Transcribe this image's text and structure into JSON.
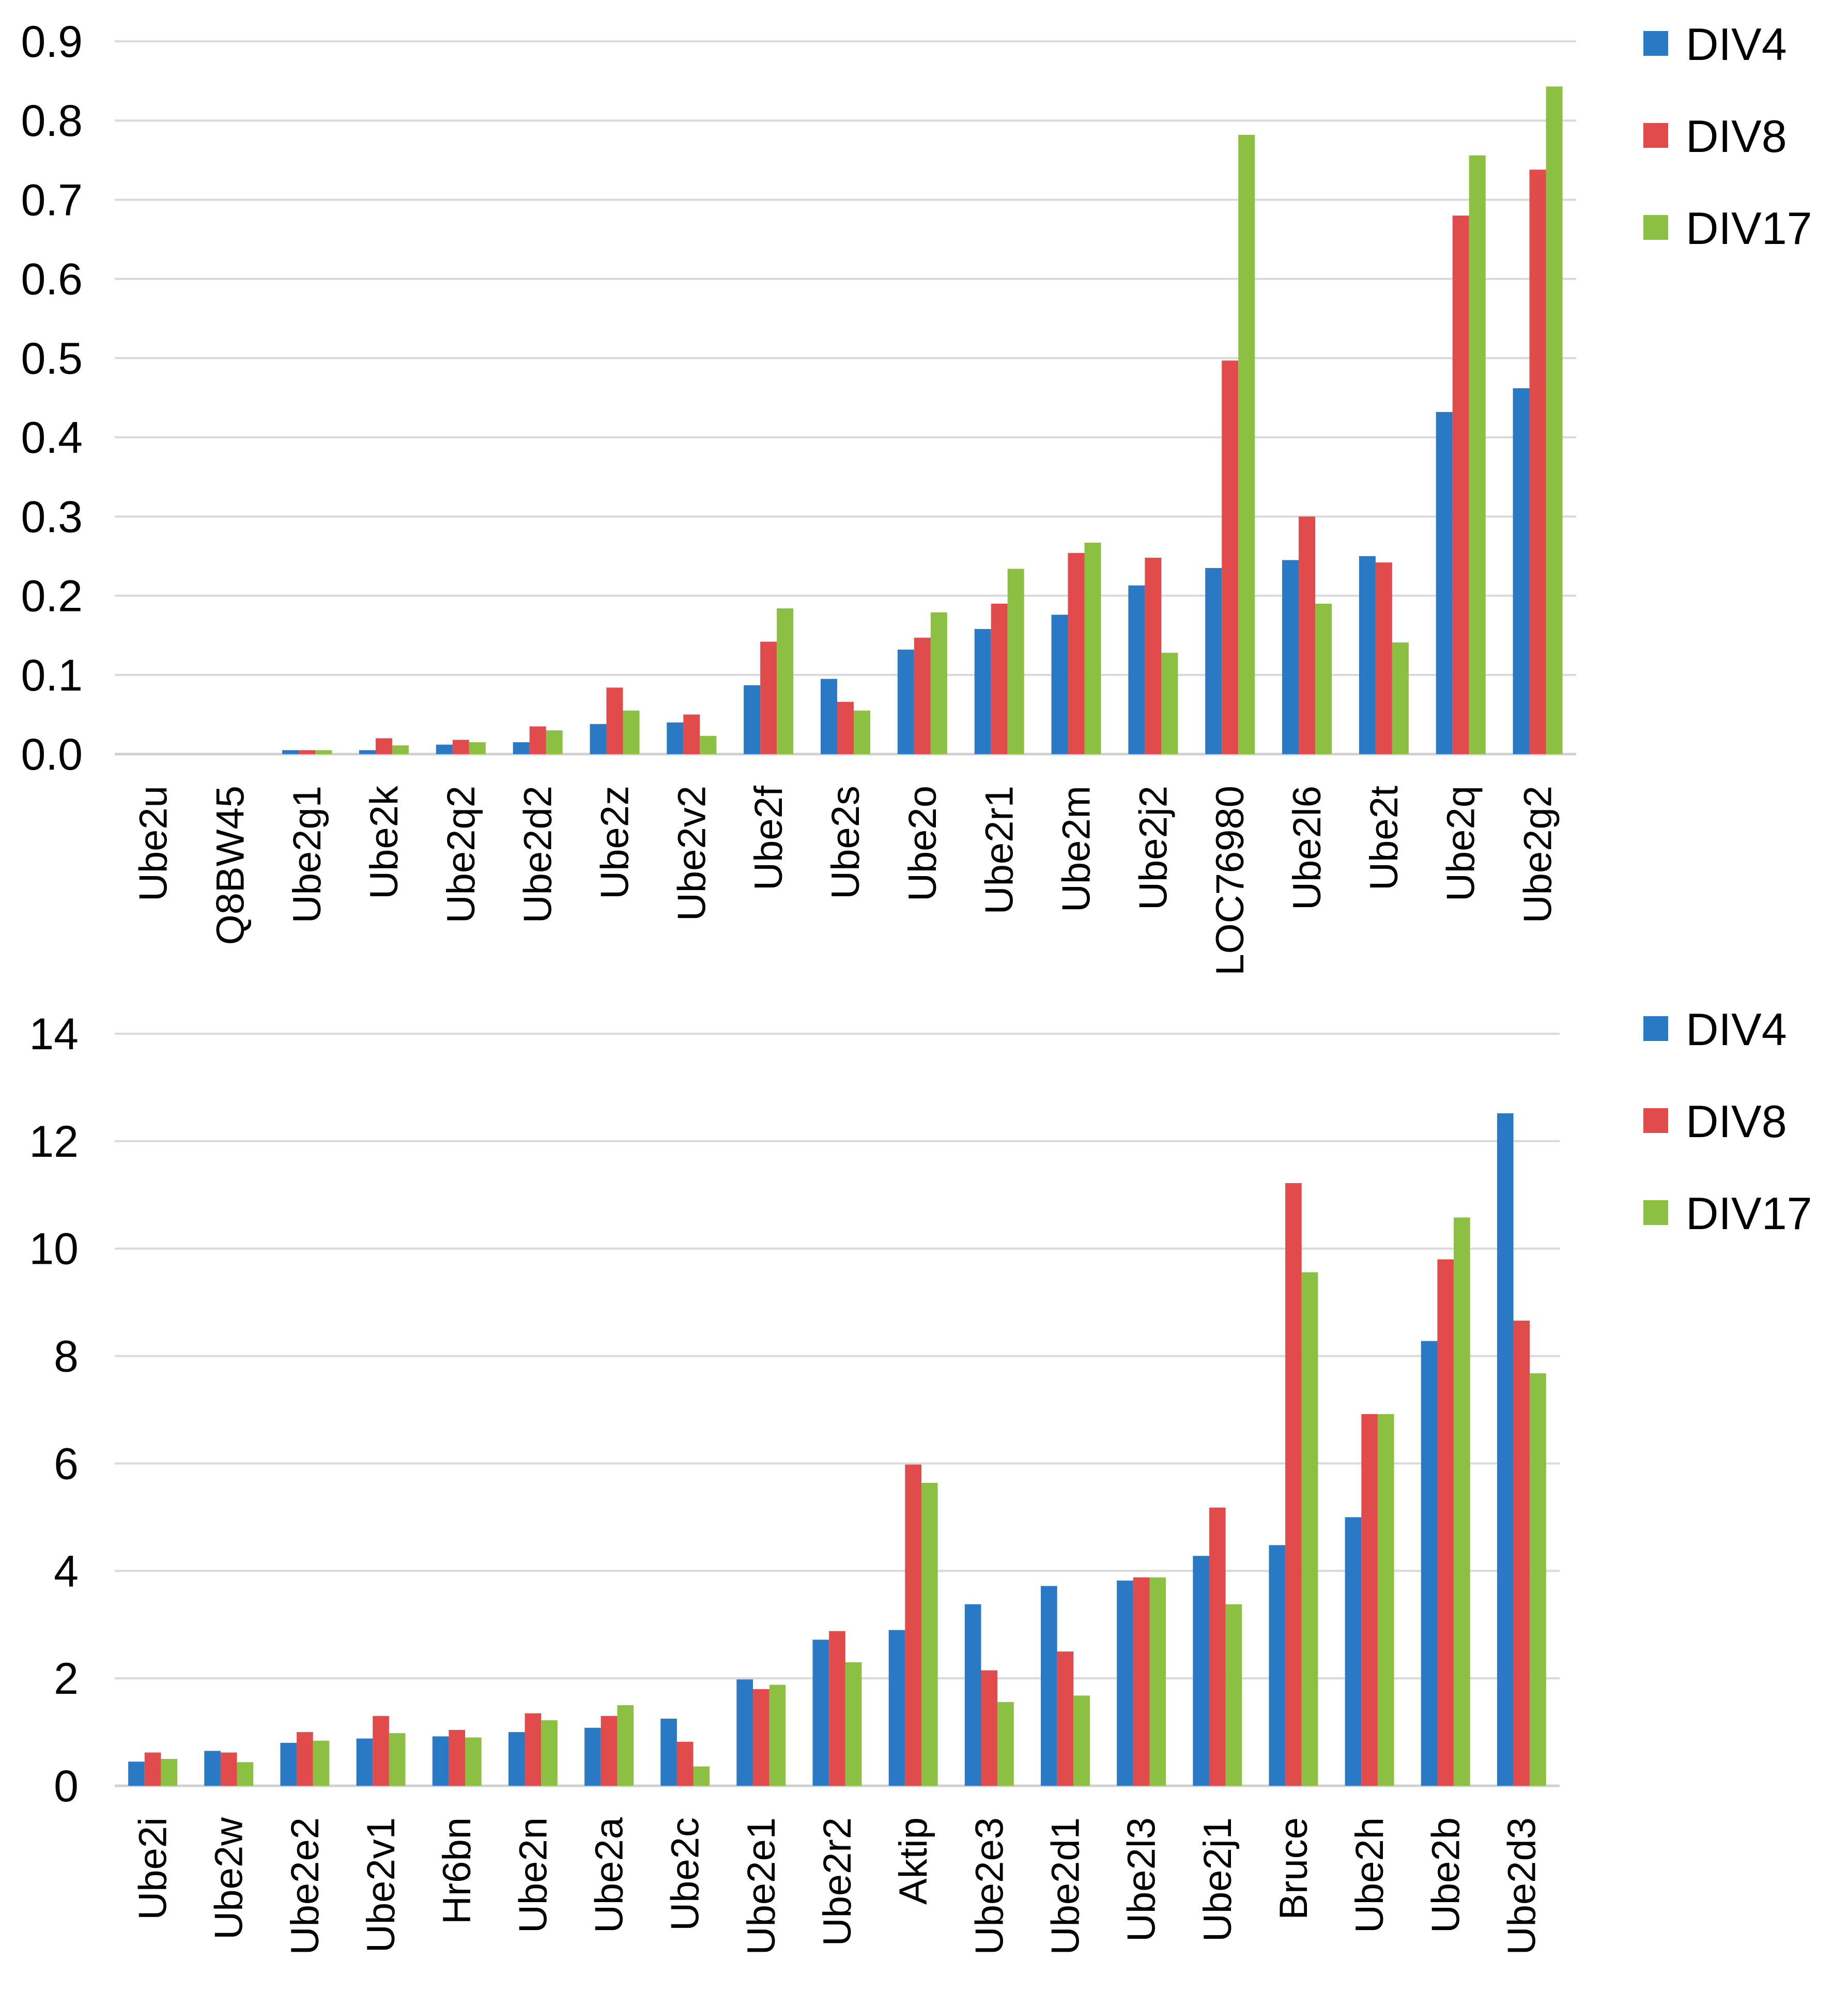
{
  "colors": {
    "DIV4": "#2979c4",
    "DIV8": "#e24b4b",
    "DIV17": "#8cc043"
  },
  "chart_data": [
    {
      "type": "bar",
      "title": "",
      "xlabel": "",
      "ylabel": "",
      "ylim": [
        0,
        0.9
      ],
      "yticks": [
        "0.0",
        "0.1",
        "0.2",
        "0.3",
        "0.4",
        "0.5",
        "0.6",
        "0.7",
        "0.8",
        "0.9"
      ],
      "ytick_values": [
        0,
        0.1,
        0.2,
        0.3,
        0.4,
        0.5,
        0.6,
        0.7,
        0.8,
        0.9
      ],
      "legend": [
        "DIV4",
        "DIV8",
        "DIV17"
      ],
      "legend_position": "top-right",
      "grid": true,
      "categories": [
        "Ube2u",
        "Q8BW45",
        "Ube2g1",
        "Ube2k",
        "Ube2q2",
        "Ube2d2",
        "Ube2z",
        "Ube2v2",
        "Ube2f",
        "Ube2s",
        "Ube2o",
        "Ube2r1",
        "Ube2m",
        "Ube2j2",
        "LOC76980",
        "Ube2l6",
        "Ube2t",
        "Ube2q",
        "Ube2g2"
      ],
      "series": [
        {
          "name": "DIV4",
          "values": [
            0.0,
            0.0,
            0.005,
            0.005,
            0.012,
            0.015,
            0.038,
            0.04,
            0.087,
            0.095,
            0.132,
            0.158,
            0.176,
            0.213,
            0.235,
            0.245,
            0.25,
            0.432,
            0.462
          ]
        },
        {
          "name": "DIV8",
          "values": [
            0.0,
            0.0,
            0.005,
            0.02,
            0.018,
            0.035,
            0.084,
            0.05,
            0.142,
            0.066,
            0.147,
            0.19,
            0.254,
            0.248,
            0.497,
            0.3,
            0.242,
            0.68,
            0.738
          ]
        },
        {
          "name": "DIV17",
          "values": [
            0.0,
            0.0,
            0.005,
            0.011,
            0.015,
            0.03,
            0.055,
            0.023,
            0.184,
            0.055,
            0.179,
            0.234,
            0.267,
            0.128,
            0.782,
            0.19,
            0.141,
            0.756,
            0.843
          ]
        }
      ]
    },
    {
      "type": "bar",
      "title": "",
      "xlabel": "",
      "ylabel": "",
      "ylim": [
        0,
        14
      ],
      "yticks": [
        "0",
        "2",
        "4",
        "6",
        "8",
        "10",
        "12",
        "14"
      ],
      "ytick_values": [
        0,
        2,
        4,
        6,
        8,
        10,
        12,
        14
      ],
      "legend": [
        "DIV4",
        "DIV8",
        "DIV17"
      ],
      "legend_position": "top-right",
      "grid": true,
      "categories": [
        "Ube2i",
        "Ube2w",
        "Ube2e2",
        "Ube2v1",
        "Hr6bn",
        "Ube2n",
        "Ube2a",
        "Ube2c",
        "Ube2e1",
        "Ube2r2",
        "Aktip",
        "Ube2e3",
        "Ube2d1",
        "Ube2l3",
        "Ube2j1",
        "Bruce",
        "Ube2h",
        "Ube2b",
        "Ube2d3"
      ],
      "series": [
        {
          "name": "DIV4",
          "values": [
            0.45,
            0.65,
            0.8,
            0.88,
            0.92,
            1.0,
            1.08,
            1.25,
            1.98,
            2.72,
            2.9,
            3.38,
            3.72,
            3.82,
            4.28,
            4.48,
            5.0,
            8.28,
            12.52
          ]
        },
        {
          "name": "DIV8",
          "values": [
            0.62,
            0.62,
            1.0,
            1.3,
            1.04,
            1.35,
            1.3,
            0.82,
            1.8,
            2.88,
            5.98,
            2.15,
            2.5,
            3.88,
            5.18,
            11.22,
            6.92,
            9.8,
            8.66
          ]
        },
        {
          "name": "DIV17",
          "values": [
            0.5,
            0.44,
            0.84,
            0.98,
            0.9,
            1.22,
            1.5,
            0.36,
            1.88,
            2.3,
            5.64,
            1.56,
            1.68,
            3.88,
            3.38,
            9.56,
            6.92,
            10.58,
            7.68
          ]
        }
      ]
    }
  ]
}
